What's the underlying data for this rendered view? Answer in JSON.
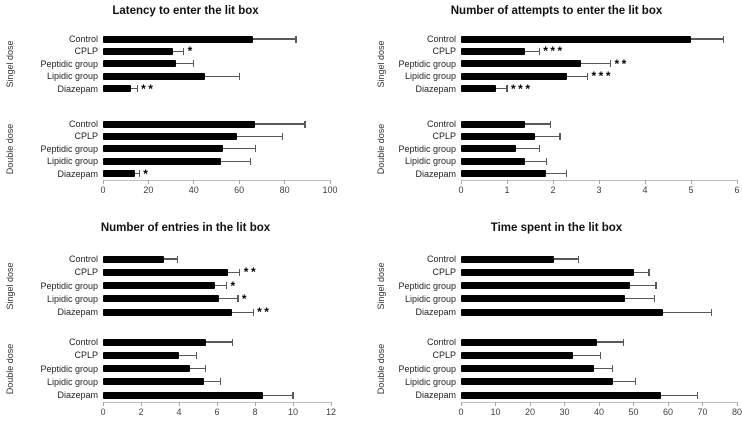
{
  "figure": {
    "background": "#ffffff",
    "colors": {
      "bar": "#000000",
      "error": "#595959",
      "axis_line": "#bfbfbf",
      "tick": "#a6a6a6",
      "tick_label": "#404040",
      "category_label": "#1f1f1f",
      "title": "#111111"
    }
  },
  "chart_data": [
    {
      "type": "bar",
      "orientation": "horizontal",
      "title": "Latency to enter the lit box",
      "categories": [
        "Control",
        "CPLP",
        "Peptidic group",
        "Lipidic group",
        "Diazepam"
      ],
      "xlim": [
        0,
        100
      ],
      "xticks": [
        0,
        20,
        40,
        60,
        80,
        100
      ],
      "grid": false,
      "series": [
        {
          "name": "Singel dose",
          "values": [
            66,
            31,
            32,
            45,
            12.5
          ],
          "errors": [
            19,
            4.5,
            8,
            15,
            2.5
          ],
          "sig": [
            "",
            "*",
            "",
            "",
            "**"
          ]
        },
        {
          "name": "Double dose",
          "values": [
            67,
            59,
            53,
            52,
            14
          ],
          "errors": [
            22,
            20,
            14,
            13,
            2
          ],
          "sig": [
            "",
            "",
            "",
            "",
            "*"
          ]
        }
      ]
    },
    {
      "type": "bar",
      "orientation": "horizontal",
      "title": "Number of attempts to enter the lit box",
      "categories": [
        "Control",
        "CPLP",
        "Peptidic group",
        "Lipidic group",
        "Diazepam"
      ],
      "xlim": [
        0,
        6
      ],
      "xticks": [
        0,
        1,
        2,
        3,
        4,
        5,
        6
      ],
      "grid": false,
      "series": [
        {
          "name": "Singel dose",
          "values": [
            5.0,
            1.4,
            2.6,
            2.3,
            0.75
          ],
          "errors": [
            0.7,
            0.3,
            0.65,
            0.45,
            0.25
          ],
          "sig": [
            "",
            "***",
            "**",
            "***",
            "***"
          ]
        },
        {
          "name": "Double dose",
          "values": [
            1.4,
            1.6,
            1.2,
            1.4,
            1.85
          ],
          "errors": [
            0.55,
            0.55,
            0.5,
            0.45,
            0.45
          ],
          "sig": [
            "",
            "",
            "",
            "",
            ""
          ]
        }
      ]
    },
    {
      "type": "bar",
      "orientation": "horizontal",
      "title": "Number of entries in the lit box",
      "categories": [
        "Control",
        "CPLP",
        "Peptidic group",
        "Lipidic group",
        "Diazepam"
      ],
      "xlim": [
        0,
        12
      ],
      "xticks": [
        0,
        2,
        4,
        6,
        8,
        10,
        12
      ],
      "grid": false,
      "series": [
        {
          "name": "Singel dose",
          "values": [
            3.2,
            6.6,
            5.9,
            6.1,
            6.8
          ],
          "errors": [
            0.7,
            0.6,
            0.6,
            1.0,
            1.1
          ],
          "sig": [
            "",
            "**",
            "*",
            "*",
            "**"
          ]
        },
        {
          "name": "Double dose",
          "values": [
            5.4,
            4.0,
            4.6,
            5.3,
            8.4
          ],
          "errors": [
            1.4,
            0.9,
            0.8,
            0.9,
            1.6
          ],
          "sig": [
            "",
            "",
            "",
            "",
            ""
          ]
        }
      ]
    },
    {
      "type": "bar",
      "orientation": "horizontal",
      "title": "Time spent in the lit box",
      "categories": [
        "Control",
        "CPLP",
        "Peptidic group",
        "Lipidic group",
        "Diazepam"
      ],
      "xlim": [
        0,
        80
      ],
      "xticks": [
        0,
        10,
        20,
        30,
        40,
        50,
        60,
        70,
        80
      ],
      "grid": false,
      "series": [
        {
          "name": "Singel dose",
          "values": [
            27,
            50,
            49,
            47.5,
            58.5
          ],
          "errors": [
            7,
            4.5,
            7.5,
            8.5,
            14
          ],
          "sig": [
            "",
            "",
            "",
            "",
            ""
          ]
        },
        {
          "name": "Double dose",
          "values": [
            39.5,
            32.5,
            38.5,
            44,
            58
          ],
          "errors": [
            7.5,
            8,
            5.5,
            6.5,
            10.5
          ],
          "sig": [
            "",
            "",
            "",
            "",
            ""
          ]
        }
      ]
    }
  ]
}
